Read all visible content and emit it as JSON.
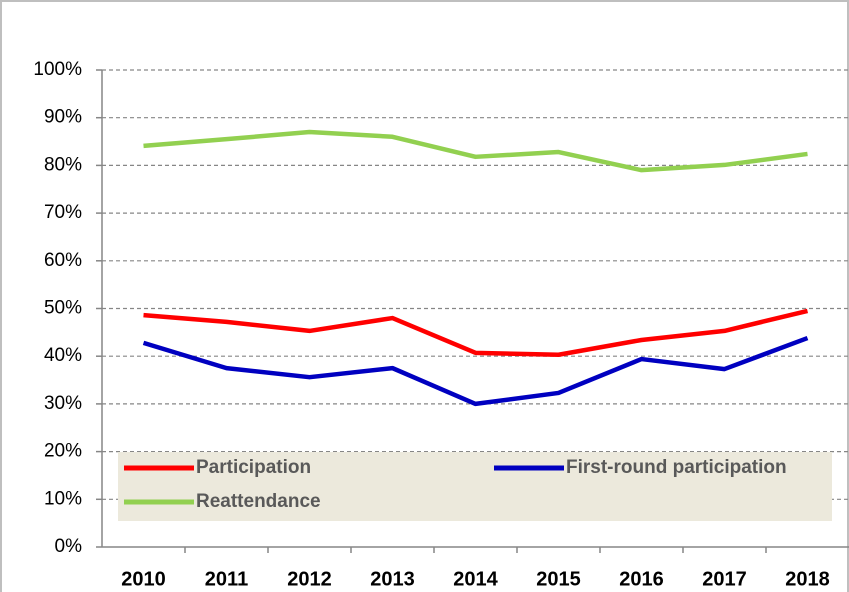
{
  "chart_data": {
    "type": "line",
    "categories": [
      "2010",
      "2011",
      "2012",
      "2013",
      "2014",
      "2015",
      "2016",
      "2017",
      "2018"
    ],
    "series": [
      {
        "name": "Participation",
        "color": "#ff0000",
        "values": [
          48.6,
          47.2,
          45.3,
          48.0,
          40.7,
          40.3,
          43.4,
          45.3,
          49.5
        ]
      },
      {
        "name": "First-round participation",
        "color": "#0000c0",
        "values": [
          42.8,
          37.5,
          35.6,
          37.5,
          30.0,
          32.3,
          39.4,
          37.3,
          43.8
        ]
      },
      {
        "name": "Reattendance",
        "color": "#92d050",
        "values": [
          84.1,
          85.5,
          87.0,
          86.0,
          81.8,
          82.8,
          79.0,
          80.1,
          82.4
        ]
      }
    ],
    "ylim": [
      0,
      100
    ],
    "yticks": [
      {
        "value": 0,
        "label": "0%"
      },
      {
        "value": 10,
        "label": "10%"
      },
      {
        "value": 20,
        "label": "20%"
      },
      {
        "value": 30,
        "label": "30%"
      },
      {
        "value": 40,
        "label": "40%"
      },
      {
        "value": 50,
        "label": "50%"
      },
      {
        "value": 60,
        "label": "60%"
      },
      {
        "value": 70,
        "label": "70%"
      },
      {
        "value": 80,
        "label": "80%"
      },
      {
        "value": 90,
        "label": "90%"
      },
      {
        "value": 100,
        "label": "100%"
      }
    ],
    "grid": true
  }
}
